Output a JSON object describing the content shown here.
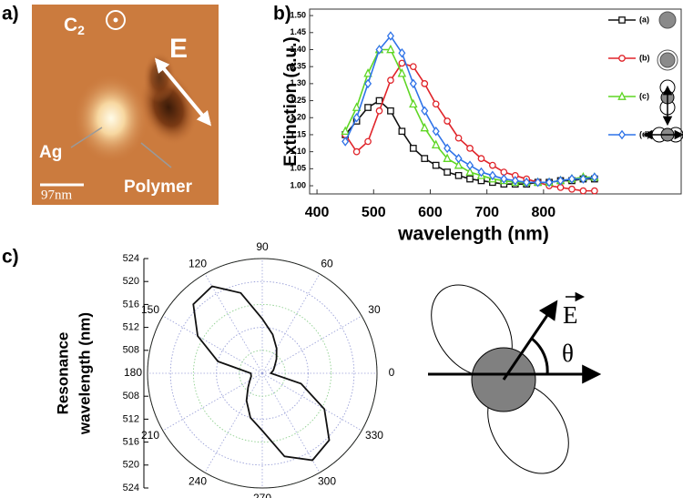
{
  "panel_labels": [
    "a)",
    "b)",
    "c)"
  ],
  "panel_a": {
    "symmetry_axis": {
      "text": "C",
      "subscript": "2"
    },
    "field_label": "E",
    "labels": [
      "Ag",
      "Polymer"
    ],
    "scale_bar": "97nm"
  },
  "chart_data": [
    {
      "type": "line",
      "xlabel": "wavelength (nm)",
      "ylabel": "Extinction (a.u.)",
      "x": [
        450,
        470,
        490,
        510,
        530,
        550,
        570,
        590,
        610,
        630,
        650,
        670,
        690,
        710,
        730,
        750,
        770,
        790,
        810,
        830,
        850,
        870,
        890
      ],
      "series": [
        {
          "name": "(a)",
          "color": "#111111",
          "marker": "square",
          "values": [
            1.15,
            1.19,
            1.23,
            1.25,
            1.22,
            1.16,
            1.11,
            1.08,
            1.06,
            1.04,
            1.03,
            1.02,
            1.015,
            1.01,
            1.005,
            1.005,
            1.005,
            1.01,
            1.01,
            1.015,
            1.015,
            1.02,
            1.02
          ]
        },
        {
          "name": "(b)",
          "color": "#e0242a",
          "marker": "circle",
          "values": [
            1.15,
            1.1,
            1.13,
            1.22,
            1.31,
            1.36,
            1.35,
            1.3,
            1.24,
            1.19,
            1.14,
            1.11,
            1.08,
            1.06,
            1.04,
            1.03,
            1.02,
            1.01,
            1.0,
            0.995,
            0.99,
            0.985,
            0.985
          ]
        },
        {
          "name": "(c)",
          "color": "#5fd624",
          "marker": "triangle",
          "values": [
            1.16,
            1.23,
            1.33,
            1.4,
            1.4,
            1.33,
            1.24,
            1.17,
            1.12,
            1.08,
            1.06,
            1.04,
            1.03,
            1.02,
            1.015,
            1.01,
            1.01,
            1.01,
            1.01,
            1.015,
            1.02,
            1.025,
            1.025
          ]
        },
        {
          "name": "(d)",
          "color": "#2f73e8",
          "marker": "diamond",
          "values": [
            1.13,
            1.2,
            1.3,
            1.4,
            1.44,
            1.39,
            1.3,
            1.22,
            1.16,
            1.11,
            1.08,
            1.06,
            1.04,
            1.03,
            1.02,
            1.015,
            1.01,
            1.01,
            1.01,
            1.015,
            1.02,
            1.02,
            1.025
          ]
        }
      ],
      "xlim": [
        387,
        1043
      ],
      "ylim": [
        0.976,
        1.519
      ],
      "xticks": [
        400,
        500,
        600,
        700,
        800
      ],
      "yticks": [
        {
          "value": 1,
          "label": "1.00"
        },
        1.05,
        {
          "value": 1.1,
          "label": "1.10"
        },
        1.15,
        {
          "value": 1.2,
          "label": "1.20"
        },
        1.25,
        {
          "value": 1.3,
          "label": "1.30"
        },
        1.35,
        {
          "value": 1.4,
          "label": "1.40"
        },
        1.45,
        {
          "value": 1.5,
          "label": "1.50"
        }
      ]
    },
    {
      "type": "polar",
      "ylabel_lines": [
        "Resonance",
        "wavelength (nm)"
      ],
      "theta": [
        0,
        15,
        30,
        45,
        60,
        75,
        90,
        105,
        120,
        135,
        150,
        165,
        180,
        195,
        210,
        225,
        240,
        255,
        270,
        285,
        300,
        315,
        330,
        345
      ],
      "values": [
        505.5,
        506,
        506.5,
        507.5,
        509,
        511,
        513.5,
        518.5,
        521.5,
        521,
        517,
        512,
        506,
        506,
        506.5,
        507.5,
        509.5,
        512,
        514,
        519,
        521.5,
        520.5,
        516.5,
        511
      ],
      "color": "#111111",
      "rlim": [
        504,
        524
      ],
      "rticks": [
        508,
        512,
        516,
        520,
        524
      ],
      "thetaticks": [
        0,
        30,
        60,
        90,
        120,
        150,
        180,
        210,
        240,
        270,
        300,
        330
      ]
    }
  ],
  "diagram": {
    "field_label": "E",
    "angle_label": "θ"
  }
}
